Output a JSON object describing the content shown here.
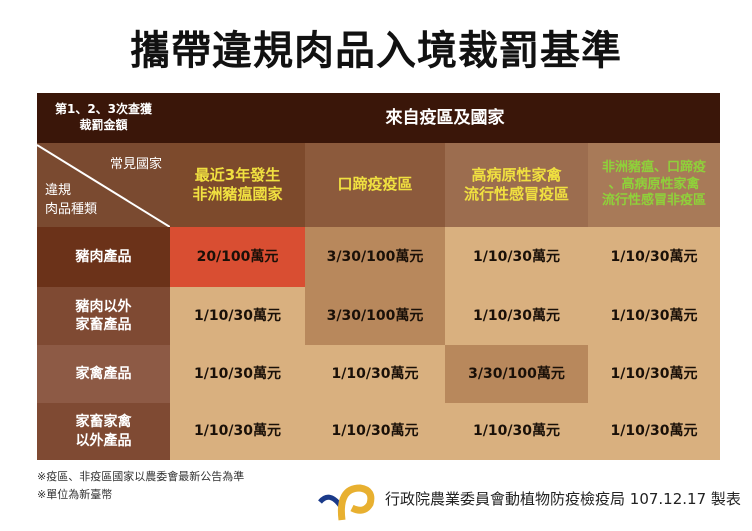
{
  "title": "攜帶違規肉品入境裁罰基準",
  "table": {
    "corner_top": "第1、2、3次查獲\n裁罰金額",
    "origin_header": "來自疫區及國家",
    "axis_country": "常見國家",
    "axis_product": "違規\n肉品種類",
    "columns": [
      "最近3年發生\n非洲豬瘟國家",
      "口蹄疫疫區",
      "高病原性家禽\n流行性感冒疫區",
      "非洲豬瘟、口蹄疫\n、高病原性家禽\n流行性感冒非疫區"
    ],
    "rows": [
      {
        "label": "豬肉產品",
        "values": [
          "20/100萬元",
          "3/30/100萬元",
          "1/10/30萬元",
          "1/10/30萬元"
        ]
      },
      {
        "label": "豬肉以外\n家畜產品",
        "values": [
          "1/10/30萬元",
          "3/30/100萬元",
          "1/10/30萬元",
          "1/10/30萬元"
        ]
      },
      {
        "label": "家禽產品",
        "values": [
          "1/10/30萬元",
          "1/10/30萬元",
          "3/30/100萬元",
          "1/10/30萬元"
        ]
      },
      {
        "label": "家畜家禽\n以外產品",
        "values": [
          "1/10/30萬元",
          "1/10/30萬元",
          "1/10/30萬元",
          "1/10/30萬元"
        ]
      }
    ]
  },
  "notes": [
    "※疫區、非疫區國家以農委會最新公告為準",
    "※單位為新臺幣"
  ],
  "footer": "行政院農業委員會動植物防疫檢疫局 107.12.17 製表",
  "colors": {
    "header": "#3a1609",
    "highlight_red": "#d94e32",
    "highlight_dark": "#b8885c",
    "cell": "#d9b07f",
    "yellow": "#f0e040",
    "green": "#8fd13a"
  }
}
